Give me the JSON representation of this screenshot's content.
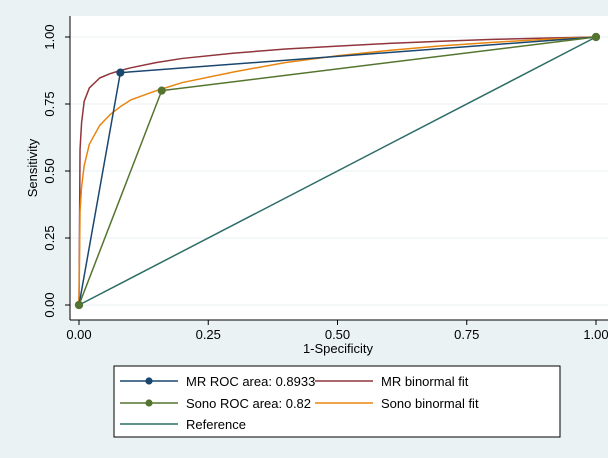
{
  "chart_data": {
    "type": "line",
    "title": "",
    "xlabel": "1-Specificity",
    "ylabel": "Sensitivity",
    "xlim": [
      0,
      1
    ],
    "ylim": [
      0,
      1
    ],
    "x_ticks": [
      "0.00",
      "0.25",
      "0.50",
      "0.75",
      "1.00"
    ],
    "y_ticks": [
      "0.00",
      "0.25",
      "0.50",
      "0.75",
      "1.00"
    ],
    "grid": true,
    "legend_position": "bottom",
    "series": [
      {
        "name": "MR ROC area: 0.8933",
        "kind": "empirical",
        "color": "#1a476f",
        "x": [
          0,
          0.08,
          1
        ],
        "y": [
          0,
          0.867,
          1
        ]
      },
      {
        "name": "Sono ROC area: 0.82",
        "kind": "empirical",
        "color": "#55752f",
        "x": [
          0,
          0.16,
          1
        ],
        "y": [
          0,
          0.8,
          1
        ]
      },
      {
        "name": "Reference",
        "kind": "line",
        "color": "#2d6d66",
        "x": [
          0,
          1
        ],
        "y": [
          0,
          1
        ]
      },
      {
        "name": "MR binormal fit",
        "kind": "fit",
        "color": "#90353b",
        "x": [
          0,
          0.002,
          0.005,
          0.01,
          0.02,
          0.04,
          0.06,
          0.08,
          0.1,
          0.15,
          0.2,
          0.3,
          0.4,
          0.5,
          0.6,
          0.7,
          0.8,
          0.9,
          1
        ],
        "y": [
          0,
          0.58,
          0.68,
          0.76,
          0.81,
          0.847,
          0.863,
          0.875,
          0.885,
          0.905,
          0.92,
          0.94,
          0.955,
          0.966,
          0.976,
          0.984,
          0.991,
          0.996,
          1
        ]
      },
      {
        "name": "Sono binormal fit",
        "kind": "fit",
        "color": "#e8850e",
        "x": [
          0,
          0.002,
          0.005,
          0.01,
          0.02,
          0.04,
          0.06,
          0.08,
          0.1,
          0.15,
          0.2,
          0.3,
          0.4,
          0.5,
          0.6,
          0.7,
          0.8,
          0.9,
          1
        ],
        "y": [
          0,
          0.35,
          0.44,
          0.52,
          0.6,
          0.67,
          0.71,
          0.74,
          0.765,
          0.8,
          0.83,
          0.87,
          0.905,
          0.93,
          0.95,
          0.967,
          0.98,
          0.991,
          1
        ]
      }
    ],
    "legend": [
      {
        "label": "MR ROC area: 0.8933",
        "color": "#1a476f",
        "marker": true
      },
      {
        "label": "MR binormal fit",
        "color": "#90353b",
        "marker": false
      },
      {
        "label": "Sono ROC area: 0.82",
        "color": "#55752f",
        "marker": true
      },
      {
        "label": "Sono binormal fit",
        "color": "#e8850e",
        "marker": false
      },
      {
        "label": "Reference",
        "color": "#2d6d66",
        "marker": false
      }
    ]
  }
}
